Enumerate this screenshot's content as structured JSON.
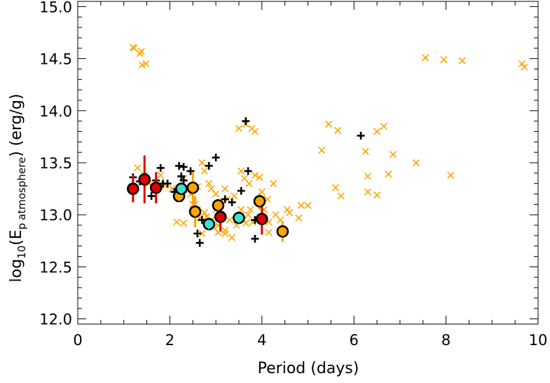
{
  "chart_data": {
    "type": "scatter",
    "title": "",
    "xlabel": "Period (days)",
    "ylabel_parts": {
      "prefix": "log",
      "base": "10",
      "open": "(E",
      "sub_p": "p",
      "sub_word": "atmosphere",
      "close": ")  (erg/g)"
    },
    "xlim": [
      0,
      10
    ],
    "ylim": [
      11.95,
      15.05
    ],
    "x_ticks": [
      0,
      2,
      4,
      6,
      8,
      10
    ],
    "x_tick_labels": [
      "0",
      "2",
      "4",
      "6",
      "8",
      "10"
    ],
    "y_ticks": [
      12.0,
      12.5,
      13.0,
      13.5,
      14.0,
      14.5,
      15.0
    ],
    "y_tick_labels": [
      "12.0",
      "12.5",
      "13.0",
      "13.5",
      "14.0",
      "14.5",
      "15.0"
    ],
    "grid": false,
    "colors": {
      "orange": "#FFA500",
      "red": "#E00000",
      "cyan": "#40E0D0",
      "black": "#000000"
    },
    "series": [
      {
        "marker": "x",
        "color": "#FFA500",
        "points": [
          [
            1.2,
            14.61
          ],
          [
            1.22,
            14.6
          ],
          [
            1.35,
            14.55
          ],
          [
            1.38,
            14.57
          ],
          [
            1.4,
            14.44
          ],
          [
            1.48,
            14.45
          ],
          [
            7.55,
            14.51
          ],
          [
            7.95,
            14.49
          ],
          [
            8.35,
            14.48
          ],
          [
            9.65,
            14.45
          ],
          [
            9.7,
            14.42
          ],
          [
            3.5,
            13.83
          ],
          [
            3.65,
            13.87
          ],
          [
            3.78,
            13.83
          ],
          [
            3.85,
            13.8
          ],
          [
            5.3,
            13.62
          ],
          [
            5.45,
            13.87
          ],
          [
            5.65,
            13.81
          ],
          [
            6.25,
            13.61
          ],
          [
            6.5,
            13.8
          ],
          [
            6.65,
            13.85
          ],
          [
            6.85,
            13.58
          ],
          [
            7.35,
            13.5
          ],
          [
            6.3,
            13.37
          ],
          [
            6.75,
            13.39
          ],
          [
            8.1,
            13.38
          ],
          [
            5.6,
            13.26
          ],
          [
            5.72,
            13.18
          ],
          [
            6.3,
            13.22
          ],
          [
            6.5,
            13.19
          ],
          [
            1.2,
            13.25
          ],
          [
            1.3,
            13.45
          ],
          [
            1.45,
            13.38
          ],
          [
            1.55,
            13.3
          ],
          [
            1.65,
            13.27
          ],
          [
            1.8,
            13.38
          ],
          [
            1.9,
            13.28
          ],
          [
            2.05,
            13.25
          ],
          [
            2.2,
            13.15
          ],
          [
            2.3,
            13.35
          ],
          [
            2.38,
            13.25
          ],
          [
            2.45,
            13.2
          ],
          [
            2.55,
            13.1
          ],
          [
            2.6,
            13.27
          ],
          [
            2.7,
            13.5
          ],
          [
            2.75,
            13.42
          ],
          [
            2.85,
            13.3
          ],
          [
            2.9,
            13.25
          ],
          [
            3.0,
            13.2
          ],
          [
            3.1,
            13.12
          ],
          [
            3.2,
            13.25
          ],
          [
            3.25,
            13.15
          ],
          [
            3.4,
            13.18
          ],
          [
            3.55,
            13.42
          ],
          [
            3.62,
            13.35
          ],
          [
            3.72,
            13.3
          ],
          [
            3.85,
            13.38
          ],
          [
            3.95,
            13.36
          ],
          [
            4.0,
            13.22
          ],
          [
            4.12,
            13.15
          ],
          [
            4.25,
            13.3
          ],
          [
            2.15,
            12.93
          ],
          [
            2.3,
            12.92
          ],
          [
            2.5,
            13.1
          ],
          [
            2.6,
            13.05
          ],
          [
            2.65,
            12.97
          ],
          [
            2.75,
            13.02
          ],
          [
            2.8,
            12.98
          ],
          [
            2.9,
            12.95
          ],
          [
            3.0,
            13.05
          ],
          [
            3.05,
            12.9
          ],
          [
            3.15,
            12.98
          ],
          [
            3.2,
            12.85
          ],
          [
            3.3,
            12.95
          ],
          [
            3.35,
            12.78
          ],
          [
            3.45,
            12.9
          ],
          [
            3.55,
            13.05
          ],
          [
            3.6,
            12.95
          ],
          [
            3.7,
            13.0
          ],
          [
            3.75,
            13.05
          ],
          [
            3.8,
            12.93
          ],
          [
            3.9,
            12.95
          ],
          [
            4.05,
            13.05
          ],
          [
            4.15,
            12.93
          ],
          [
            4.3,
            13.0
          ],
          [
            4.4,
            12.95
          ],
          [
            4.55,
            13.05
          ],
          [
            4.6,
            13.02
          ],
          [
            4.8,
            12.97
          ],
          [
            4.85,
            13.09
          ],
          [
            5.0,
            13.09
          ],
          [
            2.7,
            12.82
          ],
          [
            2.95,
            12.88
          ],
          [
            3.05,
            12.83
          ],
          [
            3.2,
            12.82
          ],
          [
            4.15,
            12.83
          ],
          [
            3.65,
            12.92
          ]
        ]
      },
      {
        "marker": "plus",
        "color": "#000000",
        "points": [
          [
            1.2,
            13.36
          ],
          [
            1.35,
            13.32
          ],
          [
            1.6,
            13.18
          ],
          [
            1.7,
            13.33
          ],
          [
            1.8,
            13.45
          ],
          [
            1.85,
            13.3
          ],
          [
            1.95,
            13.3
          ],
          [
            2.1,
            13.22
          ],
          [
            2.2,
            13.47
          ],
          [
            2.25,
            13.37
          ],
          [
            2.3,
            13.46
          ],
          [
            2.3,
            13.33
          ],
          [
            2.35,
            13.25
          ],
          [
            2.45,
            13.42
          ],
          [
            2.7,
            12.95
          ],
          [
            2.85,
            13.47
          ],
          [
            3.0,
            13.55
          ],
          [
            3.2,
            13.15
          ],
          [
            3.35,
            13.12
          ],
          [
            3.55,
            13.23
          ],
          [
            3.65,
            13.9
          ],
          [
            3.7,
            13.42
          ],
          [
            3.85,
            12.95
          ],
          [
            3.85,
            12.77
          ],
          [
            2.6,
            12.82
          ],
          [
            2.65,
            12.73
          ],
          [
            6.15,
            13.76
          ]
        ]
      },
      {
        "marker": "circle",
        "fill": "#E00000",
        "errcolor": "#E00000",
        "points": [
          [
            1.2,
            13.25,
            0.13
          ],
          [
            1.45,
            13.34,
            0.23
          ],
          [
            1.7,
            13.26,
            0.15
          ],
          [
            3.1,
            12.98,
            0.14
          ],
          [
            4.0,
            12.96,
            0.15
          ]
        ]
      },
      {
        "marker": "circle",
        "fill": "#FFA500",
        "errcolor": "#FFA500",
        "points": [
          [
            2.2,
            13.18,
            0.05
          ],
          [
            2.5,
            13.26,
            0.15
          ],
          [
            2.55,
            13.03,
            0.15
          ],
          [
            3.05,
            13.09,
            0.06
          ],
          [
            3.95,
            13.13,
            0.08
          ],
          [
            4.45,
            12.84,
            0.1
          ]
        ]
      },
      {
        "marker": "circle",
        "fill": "#40E0D0",
        "errcolor": "#40E0D0",
        "points": [
          [
            2.25,
            13.25,
            0.05
          ],
          [
            2.85,
            12.91,
            0.05
          ],
          [
            3.5,
            12.97,
            0.05
          ]
        ]
      }
    ]
  }
}
